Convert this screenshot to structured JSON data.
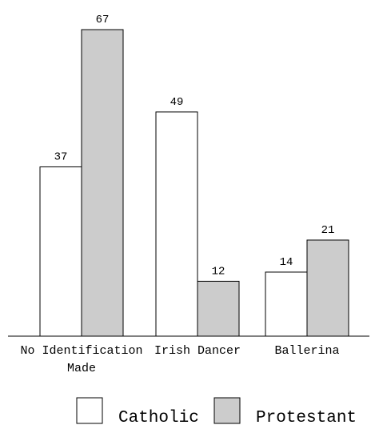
{
  "chart_data": {
    "type": "bar",
    "categories": [
      "No Identification Made",
      "Irish Dancer",
      "Ballerina"
    ],
    "category_lines": [
      [
        "No Identification",
        "Made"
      ],
      [
        "Irish Dancer"
      ],
      [
        "Ballerina"
      ]
    ],
    "series": [
      {
        "name": "Catholic",
        "values": [
          37,
          49,
          14
        ],
        "color": "#ffffff"
      },
      {
        "name": "Protestant",
        "values": [
          67,
          12,
          21
        ],
        "color": "#cccccc"
      }
    ],
    "ylim": [
      0,
      67
    ],
    "grid": false,
    "data_labels": true,
    "legend": "bottom"
  }
}
